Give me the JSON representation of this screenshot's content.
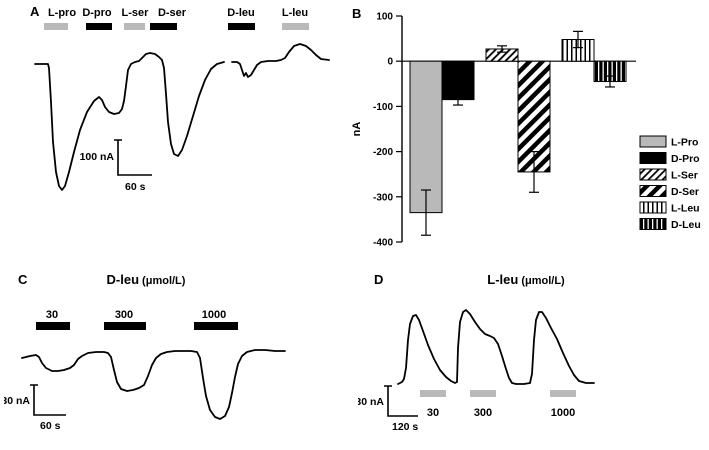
{
  "colors": {
    "gray": "#b9b9b9",
    "black": "#000000",
    "background": "#ffffff"
  },
  "panels": {
    "A": {
      "letter": "A",
      "labels": [
        "L-pro",
        "D-pro",
        "L-ser",
        "D-ser",
        "D-leu",
        "L-leu"
      ],
      "scale_v": "100 nA",
      "scale_h": "60 s"
    },
    "B": {
      "letter": "B"
    },
    "C": {
      "letter": "C",
      "title_main": "D-leu",
      "title_unit": "(μmol/L)",
      "doses": [
        "30",
        "300",
        "1000"
      ],
      "scale_v": "30 nA",
      "scale_h": "60 s"
    },
    "D": {
      "letter": "D",
      "title_main": "L-leu",
      "title_unit": "(μmol/L)",
      "doses": [
        "30",
        "300",
        "1000"
      ],
      "scale_v": "30 nA",
      "scale_h": "120 s"
    }
  },
  "chart_data": [
    {
      "type": "line",
      "panel": "A",
      "conditions": [
        "L-pro",
        "D-pro",
        "L-ser",
        "D-ser",
        "D-leu",
        "L-leu"
      ],
      "approx_peak_nA": [
        -340,
        -85,
        25,
        -245,
        -45,
        48
      ],
      "scale_bar": {
        "current": "100 nA",
        "time": "60 s"
      },
      "trace1_points": [
        [
          31,
          62
        ],
        [
          44,
          62
        ],
        [
          45,
          66
        ],
        [
          47,
          100
        ],
        [
          49,
          140
        ],
        [
          52,
          170
        ],
        [
          55,
          184
        ],
        [
          58,
          188
        ],
        [
          61,
          184
        ],
        [
          65,
          170
        ],
        [
          70,
          150
        ],
        [
          76,
          128
        ],
        [
          83,
          110
        ],
        [
          90,
          99
        ],
        [
          95,
          95
        ],
        [
          98,
          98
        ],
        [
          101,
          105
        ],
        [
          105,
          110
        ],
        [
          110,
          112
        ],
        [
          115,
          111
        ],
        [
          118,
          107
        ],
        [
          120,
          99
        ],
        [
          122,
          84
        ],
        [
          124,
          68
        ],
        [
          127,
          62
        ],
        [
          131,
          60
        ],
        [
          135,
          59
        ],
        [
          138,
          56
        ],
        [
          142,
          52
        ],
        [
          146,
          51
        ],
        [
          151,
          52
        ],
        [
          155,
          55
        ],
        [
          158,
          58
        ],
        [
          160,
          66
        ],
        [
          162,
          92
        ],
        [
          164,
          120
        ],
        [
          167,
          142
        ],
        [
          170,
          152
        ],
        [
          174,
          154
        ],
        [
          178,
          148
        ],
        [
          183,
          134
        ],
        [
          189,
          114
        ],
        [
          195,
          94
        ],
        [
          201,
          78
        ],
        [
          207,
          67
        ],
        [
          213,
          62
        ],
        [
          220,
          60
        ]
      ],
      "trace2_points": [
        [
          228,
          60
        ],
        [
          233,
          60
        ],
        [
          236,
          62
        ],
        [
          238,
          68
        ],
        [
          240,
          74
        ],
        [
          242,
          71
        ],
        [
          244,
          75
        ],
        [
          247,
          73
        ],
        [
          250,
          68
        ],
        [
          253,
          63
        ],
        [
          257,
          60
        ],
        [
          264,
          59
        ],
        [
          272,
          59
        ],
        [
          277,
          58
        ],
        [
          281,
          56
        ],
        [
          285,
          50
        ],
        [
          290,
          44
        ],
        [
          296,
          42
        ],
        [
          302,
          44
        ],
        [
          307,
          48
        ],
        [
          312,
          53
        ],
        [
          317,
          57
        ],
        [
          325,
          58
        ]
      ]
    },
    {
      "type": "bar",
      "panel": "B",
      "categories": [
        "L-Pro",
        "D-Pro",
        "L-Ser",
        "D-Ser",
        "L-Leu",
        "D-Leu"
      ],
      "values": [
        -335,
        -85,
        27,
        -245,
        48,
        -45
      ],
      "errors": [
        50,
        12,
        7,
        45,
        18,
        12
      ],
      "ylabel": "nA",
      "ylim": [
        -400,
        100
      ],
      "yticks": [
        100,
        0,
        -100,
        -200,
        -300,
        -400
      ],
      "legend": [
        "L-Pro",
        "D-Pro",
        "L-Ser",
        "D-Ser",
        "L-Leu",
        "D-Leu"
      ],
      "legend_position": "right",
      "bar_styles": [
        "solid-gray",
        "solid-black",
        "hatch-diagonal-light",
        "hatch-diagonal-heavy",
        "stripe-vertical-light",
        "stripe-vertical-dark"
      ]
    },
    {
      "type": "line",
      "panel": "C",
      "title": "D-leu (μmol/L)",
      "doses_umol_per_L": [
        30,
        300,
        1000
      ],
      "approx_peak_nA": [
        -15,
        -36,
        -63
      ],
      "scale_bar": {
        "current": "30 nA",
        "time": "60 s"
      },
      "trace_points": [
        [
          18,
          90
        ],
        [
          26,
          88
        ],
        [
          32,
          87
        ],
        [
          35,
          89
        ],
        [
          38,
          95
        ],
        [
          42,
          100
        ],
        [
          48,
          103
        ],
        [
          54,
          103
        ],
        [
          60,
          102
        ],
        [
          66,
          100
        ],
        [
          70,
          97
        ],
        [
          74,
          91
        ],
        [
          78,
          88
        ],
        [
          84,
          85
        ],
        [
          92,
          84
        ],
        [
          100,
          84
        ],
        [
          104,
          85
        ],
        [
          107,
          89
        ],
        [
          110,
          102
        ],
        [
          113,
          114
        ],
        [
          117,
          121
        ],
        [
          123,
          123
        ],
        [
          129,
          122
        ],
        [
          135,
          120
        ],
        [
          140,
          117
        ],
        [
          144,
          108
        ],
        [
          148,
          97
        ],
        [
          152,
          90
        ],
        [
          157,
          86
        ],
        [
          163,
          84
        ],
        [
          171,
          83
        ],
        [
          179,
          83
        ],
        [
          187,
          83
        ],
        [
          193,
          84
        ],
        [
          196,
          90
        ],
        [
          199,
          110
        ],
        [
          202,
          128
        ],
        [
          206,
          142
        ],
        [
          211,
          149
        ],
        [
          216,
          151
        ],
        [
          221,
          148
        ],
        [
          225,
          139
        ],
        [
          228,
          125
        ],
        [
          231,
          109
        ],
        [
          234,
          96
        ],
        [
          238,
          88
        ],
        [
          243,
          84
        ],
        [
          251,
          82
        ],
        [
          261,
          82
        ],
        [
          271,
          83
        ],
        [
          281,
          83
        ]
      ]
    },
    {
      "type": "line",
      "panel": "D",
      "title": "L-leu (μmol/L)",
      "doses_umol_per_L": [
        30,
        300,
        1000
      ],
      "approx_peak_nA": [
        66,
        72,
        70
      ],
      "scale_bar": {
        "current": "30 nA",
        "time": "120 s"
      },
      "trace_points": [
        [
          40,
          116
        ],
        [
          44,
          114
        ],
        [
          46,
          111
        ],
        [
          48,
          100
        ],
        [
          50,
          72
        ],
        [
          52,
          56
        ],
        [
          55,
          48
        ],
        [
          58,
          47
        ],
        [
          61,
          52
        ],
        [
          65,
          63
        ],
        [
          70,
          77
        ],
        [
          76,
          91
        ],
        [
          82,
          102
        ],
        [
          88,
          109
        ],
        [
          93,
          113
        ],
        [
          97,
          115
        ],
        [
          99,
          114
        ],
        [
          100,
          80
        ],
        [
          102,
          54
        ],
        [
          105,
          44
        ],
        [
          108,
          42
        ],
        [
          112,
          46
        ],
        [
          117,
          54
        ],
        [
          122,
          61
        ],
        [
          127,
          66
        ],
        [
          132,
          68
        ],
        [
          136,
          70
        ],
        [
          140,
          76
        ],
        [
          144,
          88
        ],
        [
          148,
          101
        ],
        [
          151,
          110
        ],
        [
          154,
          115
        ],
        [
          158,
          116
        ],
        [
          166,
          116
        ],
        [
          172,
          115
        ],
        [
          174,
          106
        ],
        [
          176,
          72
        ],
        [
          178,
          52
        ],
        [
          181,
          44
        ],
        [
          184,
          44
        ],
        [
          188,
          50
        ],
        [
          193,
          60
        ],
        [
          199,
          71
        ],
        [
          205,
          85
        ],
        [
          211,
          98
        ],
        [
          216,
          107
        ],
        [
          221,
          113
        ],
        [
          228,
          115
        ],
        [
          236,
          115
        ]
      ]
    }
  ]
}
